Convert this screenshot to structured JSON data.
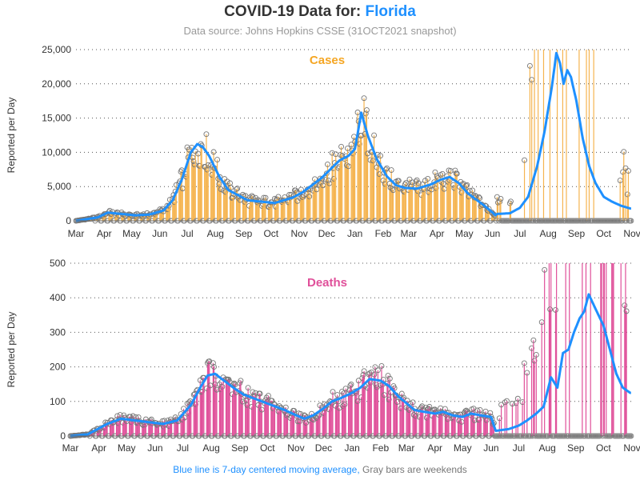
{
  "title_prefix": "COVID-19 Data for: ",
  "title_place": "Florida",
  "subtitle": "Data source: Johns Hopkins CSSE (31OCT2021 snapshot)",
  "footer": {
    "blue_text": "Blue line is 7-day centered moving average,",
    "gray_text": "Gray bars are weekends"
  },
  "colors": {
    "cases_bar": "#f5b450",
    "cases_label": "#f5a623",
    "deaths_bar": "#e0509a",
    "deaths_label": "#e0509a",
    "moving_average": "#1e90ff",
    "weekend_marker": "#8c8c8c",
    "text": "#333333"
  },
  "chart_data": [
    {
      "type": "bar",
      "panel_label": "Cases",
      "ylabel": "Reported per Day",
      "ylim": [
        0,
        25000
      ],
      "yticks": [
        0,
        5000,
        10000,
        15000,
        20000,
        25000
      ],
      "ytick_labels": [
        "0",
        "5,000",
        "10,000",
        "15,000",
        "20,000",
        "25,000"
      ],
      "grid": "horizontal dotted",
      "x_range": [
        "2020-03-01",
        "2021-11-01"
      ],
      "xtick_labels": [
        "Mar",
        "Apr",
        "May",
        "Jun",
        "Jul",
        "Aug",
        "Sep",
        "Oct",
        "Nov",
        "Dec",
        "Jan",
        "Feb",
        "Mar",
        "Apr",
        "May",
        "Jun",
        "Jul",
        "Aug",
        "Sep",
        "Oct",
        "Nov"
      ],
      "moving_average_series": {
        "x": [
          "2020-03-01",
          "2020-03-25",
          "2020-04-05",
          "2020-04-20",
          "2020-05-05",
          "2020-05-20",
          "2020-06-05",
          "2020-06-15",
          "2020-06-25",
          "2020-07-05",
          "2020-07-12",
          "2020-07-18",
          "2020-07-25",
          "2020-08-05",
          "2020-08-15",
          "2020-08-25",
          "2020-09-05",
          "2020-09-20",
          "2020-10-05",
          "2020-10-15",
          "2020-10-25",
          "2020-11-05",
          "2020-11-15",
          "2020-11-25",
          "2020-12-05",
          "2020-12-15",
          "2020-12-25",
          "2021-01-01",
          "2021-01-05",
          "2021-01-08",
          "2021-01-15",
          "2021-01-25",
          "2021-02-05",
          "2021-02-15",
          "2021-02-25",
          "2021-03-10",
          "2021-03-25",
          "2021-04-05",
          "2021-04-15",
          "2021-04-25",
          "2021-05-05",
          "2021-05-15",
          "2021-05-25",
          "2021-06-01",
          "2021-06-04",
          "2021-06-06",
          "2021-06-20",
          "2021-07-01",
          "2021-07-10",
          "2021-07-20",
          "2021-07-28",
          "2021-08-05",
          "2021-08-10",
          "2021-08-14",
          "2021-08-18",
          "2021-08-22",
          "2021-08-26",
          "2021-09-01",
          "2021-09-08",
          "2021-09-15",
          "2021-09-22",
          "2021-10-01",
          "2021-10-10",
          "2021-10-20",
          "2021-10-30"
        ],
        "y": [
          0,
          500,
          1200,
          1000,
          800,
          900,
          1500,
          3000,
          6000,
          10000,
          11200,
          10800,
          9500,
          6500,
          4500,
          3800,
          3000,
          2800,
          2600,
          3000,
          3400,
          4200,
          5200,
          6200,
          7500,
          8800,
          9500,
          10500,
          13500,
          15800,
          12500,
          9000,
          6500,
          5200,
          4800,
          4700,
          5300,
          6000,
          6400,
          5500,
          4000,
          3000,
          2000,
          1200,
          800,
          1000,
          1100,
          1900,
          3500,
          8000,
          13000,
          19500,
          24500,
          23000,
          20000,
          22000,
          21000,
          17500,
          12000,
          8000,
          5500,
          3500,
          2800,
          2200,
          1800
        ]
      },
      "daily_reports_note": "Daily reported counts drawn as thin bars with circle markers at the top; weekend days are drawn as gray circles at zero. After early June 2021 reports become intermittent with large batched values (many exceeding 25,000)."
    },
    {
      "type": "bar",
      "panel_label": "Deaths",
      "ylabel": "Reported per Day",
      "ylim": [
        0,
        500
      ],
      "yticks": [
        0,
        100,
        200,
        300,
        400,
        500
      ],
      "ytick_labels": [
        "0",
        "100",
        "200",
        "300",
        "400",
        "500"
      ],
      "grid": "horizontal dotted",
      "x_range": [
        "2020-03-01",
        "2021-11-01"
      ],
      "xtick_labels": [
        "Mar",
        "Apr",
        "May",
        "Jun",
        "Jul",
        "Aug",
        "Sep",
        "Oct",
        "Nov",
        "Dec",
        "Jan",
        "Feb",
        "Mar",
        "Apr",
        "May",
        "Jun",
        "Jul",
        "Aug",
        "Sep",
        "Oct",
        "Nov"
      ],
      "moving_average_series": {
        "x": [
          "2020-03-01",
          "2020-03-20",
          "2020-04-10",
          "2020-04-25",
          "2020-05-10",
          "2020-05-25",
          "2020-06-10",
          "2020-06-25",
          "2020-07-10",
          "2020-07-20",
          "2020-07-28",
          "2020-08-05",
          "2020-08-15",
          "2020-08-25",
          "2020-09-05",
          "2020-09-20",
          "2020-10-05",
          "2020-10-20",
          "2020-11-01",
          "2020-11-10",
          "2020-11-20",
          "2020-12-01",
          "2020-12-10",
          "2020-12-20",
          "2021-01-01",
          "2021-01-10",
          "2021-01-20",
          "2021-02-01",
          "2021-02-10",
          "2021-02-20",
          "2021-03-01",
          "2021-03-10",
          "2021-03-20",
          "2021-04-01",
          "2021-04-10",
          "2021-04-20",
          "2021-05-01",
          "2021-05-10",
          "2021-05-20",
          "2021-06-01",
          "2021-06-04",
          "2021-06-06",
          "2021-06-20",
          "2021-07-01",
          "2021-07-10",
          "2021-07-20",
          "2021-07-28",
          "2021-08-05",
          "2021-08-12",
          "2021-08-18",
          "2021-08-24",
          "2021-08-30",
          "2021-09-05",
          "2021-09-10",
          "2021-09-15",
          "2021-09-22",
          "2021-10-01",
          "2021-10-08",
          "2021-10-15",
          "2021-10-22",
          "2021-10-30"
        ],
        "y": [
          0,
          5,
          35,
          50,
          45,
          40,
          35,
          45,
          90,
          140,
          175,
          180,
          160,
          140,
          120,
          105,
          90,
          75,
          60,
          50,
          60,
          80,
          100,
          110,
          125,
          140,
          165,
          160,
          145,
          115,
          95,
          75,
          70,
          65,
          70,
          60,
          55,
          65,
          60,
          55,
          30,
          15,
          20,
          30,
          45,
          65,
          85,
          170,
          140,
          240,
          250,
          300,
          340,
          360,
          410,
          370,
          320,
          250,
          180,
          140,
          125
        ]
      },
      "daily_reports_note": "Daily reported deaths drawn as thin bars with circle markers; weekend days are gray circles at zero. After early June 2021 reports are intermittent with large batched values (many exceeding 500)."
    }
  ]
}
